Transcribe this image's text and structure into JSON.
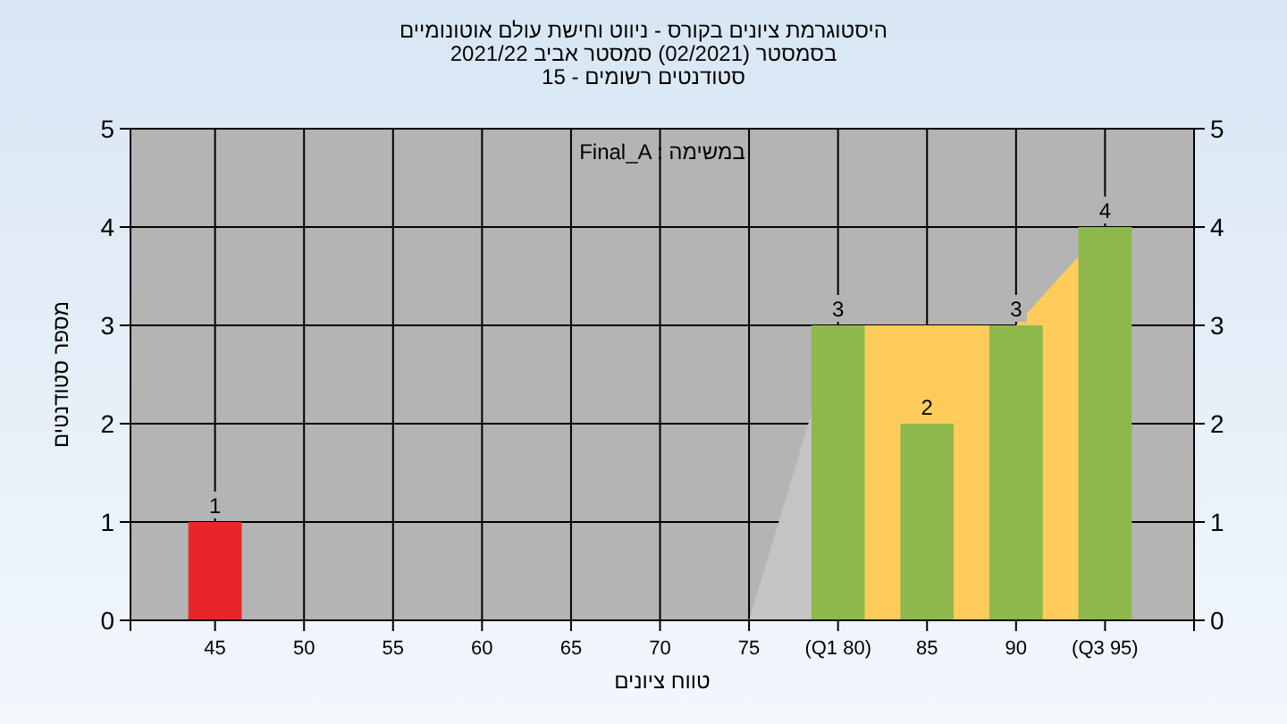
{
  "chart_data": {
    "type": "bar",
    "title": "היסטוגרמת ציונים בקורס - ניווט וחישת עולם אוטונומיים",
    "subtitle": "בסמסטר  (02/2021)  סמסטר אביב 2021/22",
    "annotations": [
      "סטודנטים רשומים - 15",
      "Final_A : במשימה"
    ],
    "xlabel": "טווח ציונים",
    "ylabel": "מספר סטודנטים",
    "categories": [
      "45",
      "50",
      "55",
      "60",
      "65",
      "70",
      "75",
      "(Q1 80)",
      "85",
      "90",
      "(Q3 95)"
    ],
    "series": [
      {
        "type": "area",
        "color": "#c4c4c4",
        "values": [
          null,
          null,
          null,
          null,
          null,
          null,
          0,
          3,
          null,
          null,
          null
        ]
      },
      {
        "type": "area",
        "color": "#ffcc5c",
        "values": [
          null,
          null,
          null,
          null,
          null,
          null,
          null,
          3,
          3,
          3,
          4
        ]
      },
      {
        "colors": [
          "#e8262a",
          "#8fb84c",
          "#8fb84c",
          "#8fb84c",
          "#8fb84c",
          "#8fb84c",
          "#8fb84c",
          "#8fb84c",
          "#8fb84c",
          "#8fb84c",
          "#8fb84c"
        ],
        "values": [
          1,
          0,
          0,
          0,
          0,
          0,
          0,
          3,
          2,
          3,
          4
        ],
        "value_labels": [
          "1",
          null,
          null,
          null,
          null,
          null,
          null,
          "3",
          "2",
          "3",
          "4"
        ]
      }
    ],
    "ylim": [
      0,
      5
    ],
    "yticks": [
      0,
      1,
      2,
      3,
      4,
      5
    ],
    "y2lim": [
      0,
      5
    ],
    "y2ticks": [
      0,
      1,
      2,
      3,
      4,
      5
    ],
    "grid": true
  }
}
